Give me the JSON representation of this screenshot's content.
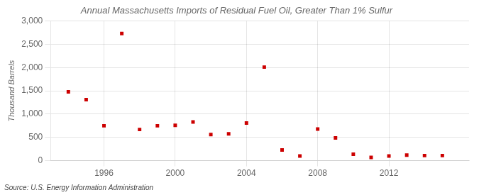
{
  "chart_data": {
    "type": "scatter",
    "title": "Annual Massachusetts Imports of Residual Fuel Oil, Greater Than 1% Sulfur",
    "ylabel": "Thousand Barrels",
    "source": "Source: U.S. Energy Information Administration",
    "x": [
      1994,
      1995,
      1996,
      1997,
      1998,
      1999,
      2000,
      2001,
      2002,
      2003,
      2004,
      2005,
      2006,
      2007,
      2008,
      2009,
      2010,
      2011,
      2012,
      2013,
      2014,
      2015
    ],
    "values": [
      1480,
      1310,
      750,
      2730,
      670,
      750,
      760,
      830,
      560,
      575,
      810,
      2010,
      230,
      100,
      680,
      490,
      140,
      70,
      100,
      120,
      110,
      110
    ],
    "color": "#cc0000",
    "marker": "square",
    "xlim": [
      1993.0,
      2016.5
    ],
    "xticks": [
      1996,
      2000,
      2004,
      2008,
      2012
    ],
    "ylim": [
      0,
      3000
    ],
    "yticks": [
      0,
      500,
      {
        "value": 1000,
        "label": "1,000"
      },
      {
        "value": 1500,
        "label": "1,500"
      },
      {
        "value": 2000,
        "label": "2,000"
      },
      {
        "value": 2500,
        "label": "2,500"
      },
      {
        "value": 3000,
        "label": "3,000"
      }
    ],
    "grid": true
  }
}
